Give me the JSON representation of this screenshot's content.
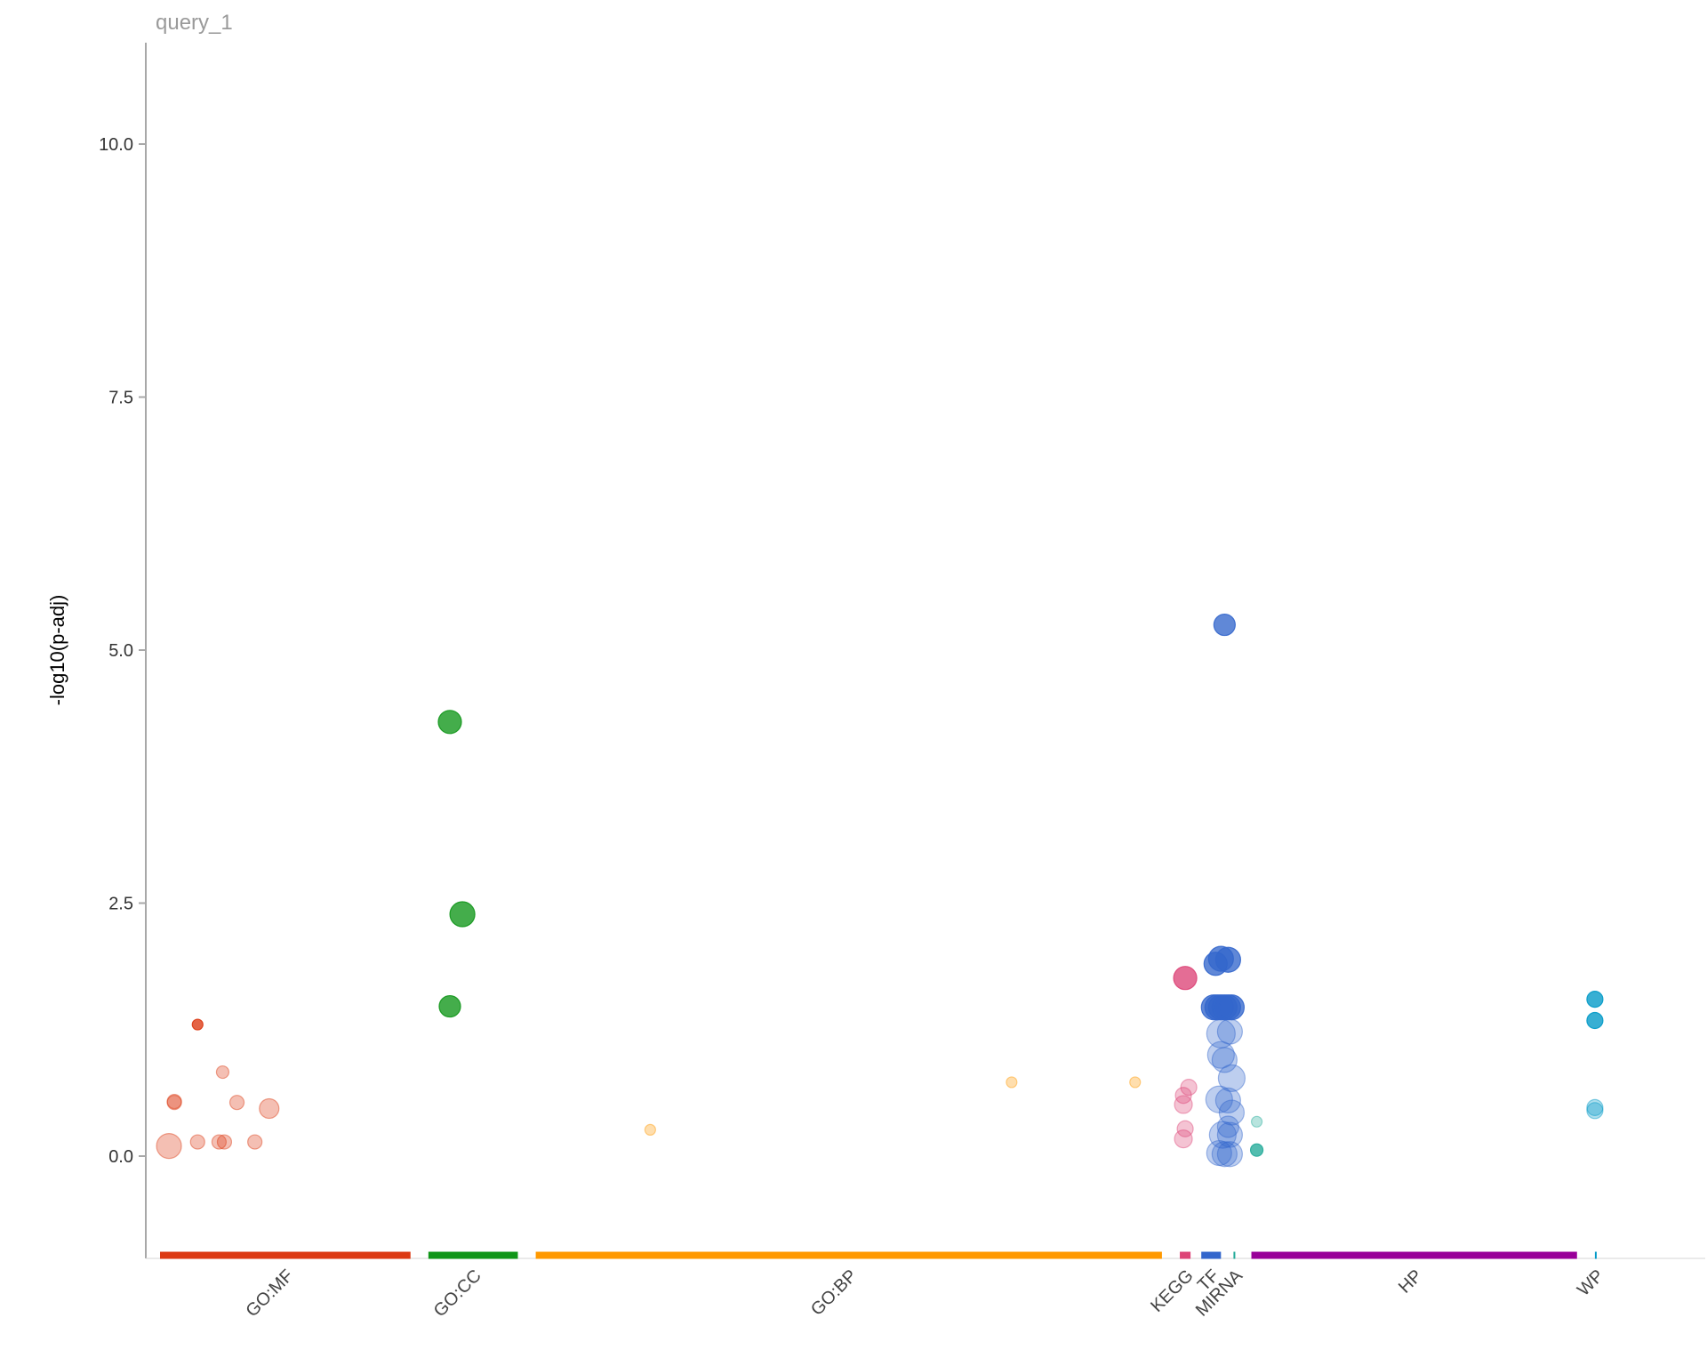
{
  "chart_data": {
    "type": "scatter",
    "title": "query_1",
    "ylabel": "-log10(p-adj)",
    "xlabel": "",
    "ylim": [
      -1,
      11.3
    ],
    "yticks": [
      "0.0",
      "2.5",
      "5.0",
      "7.5",
      "10.0"
    ],
    "ytick_values": [
      0,
      2.5,
      5,
      7.5,
      10
    ],
    "grid": false,
    "categories": [
      {
        "name": "GO:MF",
        "color": "#dc3912",
        "range": [
          0,
          14
        ]
      },
      {
        "name": "GO:CC",
        "color": "#109618",
        "range": [
          15,
          20
        ]
      },
      {
        "name": "GO:BP",
        "color": "#ff9900",
        "range": [
          21,
          56
        ]
      },
      {
        "name": "KEGG",
        "color": "#dd4477",
        "range": [
          57,
          57.6
        ]
      },
      {
        "name": "TF",
        "color": "#3366cc",
        "range": [
          58.2,
          59.3
        ]
      },
      {
        "name": "MIRNA",
        "color": "#22aa99",
        "range": [
          60,
          60.1
        ]
      },
      {
        "name": "HP",
        "color": "#990099",
        "range": [
          61,
          79.2
        ]
      },
      {
        "name": "WP",
        "color": "#0099c6",
        "range": [
          80.2,
          80.25
        ]
      }
    ],
    "series": [
      {
        "name": "GO:MF",
        "color": "#dc3912",
        "points": [
          {
            "x": 2.1,
            "y": 1.3,
            "size": 6,
            "sig": true
          },
          {
            "x": 0.8,
            "y": 0.54,
            "size": 8,
            "sig": false
          },
          {
            "x": 0.8,
            "y": 0.53,
            "size": 8,
            "sig": false
          },
          {
            "x": 3.5,
            "y": 0.83,
            "size": 7,
            "sig": false
          },
          {
            "x": 4.3,
            "y": 0.53,
            "size": 8,
            "sig": false
          },
          {
            "x": 6.1,
            "y": 0.47,
            "size": 11,
            "sig": false
          },
          {
            "x": 0.5,
            "y": 0.1,
            "size": 14,
            "sig": false
          },
          {
            "x": 2.1,
            "y": 0.14,
            "size": 8,
            "sig": false
          },
          {
            "x": 3.3,
            "y": 0.14,
            "size": 8,
            "sig": false
          },
          {
            "x": 3.6,
            "y": 0.14,
            "size": 8,
            "sig": false
          },
          {
            "x": 5.3,
            "y": 0.14,
            "size": 8,
            "sig": false
          }
        ]
      },
      {
        "name": "GO:CC",
        "color": "#109618",
        "points": [
          {
            "x": 16.2,
            "y": 4.29,
            "size": 13,
            "sig": true
          },
          {
            "x": 16.9,
            "y": 2.39,
            "size": 14,
            "sig": true
          },
          {
            "x": 16.2,
            "y": 1.48,
            "size": 12,
            "sig": true
          }
        ]
      },
      {
        "name": "GO:BP",
        "color": "#ff9900",
        "points": [
          {
            "x": 27.4,
            "y": 0.26,
            "size": 6,
            "sig": false
          },
          {
            "x": 47.6,
            "y": 0.73,
            "size": 6,
            "sig": false
          },
          {
            "x": 54.5,
            "y": 0.73,
            "size": 6,
            "sig": false
          }
        ]
      },
      {
        "name": "KEGG",
        "color": "#dd4477",
        "points": [
          {
            "x": 57.3,
            "y": 1.76,
            "size": 13,
            "sig": true
          },
          {
            "x": 57.2,
            "y": 0.6,
            "size": 9,
            "sig": false
          },
          {
            "x": 57.5,
            "y": 0.68,
            "size": 9,
            "sig": false
          },
          {
            "x": 57.2,
            "y": 0.51,
            "size": 10,
            "sig": false
          },
          {
            "x": 57.3,
            "y": 0.27,
            "size": 9,
            "sig": false
          },
          {
            "x": 57.2,
            "y": 0.17,
            "size": 10,
            "sig": false
          }
        ]
      },
      {
        "name": "TF",
        "color": "#3366cc",
        "points": [
          {
            "x": 59.5,
            "y": 5.25,
            "size": 12,
            "sig": true
          },
          {
            "x": 59.3,
            "y": 1.95,
            "size": 14,
            "sig": true
          },
          {
            "x": 59.7,
            "y": 1.94,
            "size": 14,
            "sig": true
          },
          {
            "x": 59.0,
            "y": 1.9,
            "size": 13,
            "sig": true
          },
          {
            "x": 58.9,
            "y": 1.47,
            "size": 14,
            "sig": true
          },
          {
            "x": 59.1,
            "y": 1.47,
            "size": 14,
            "sig": true
          },
          {
            "x": 59.3,
            "y": 1.47,
            "size": 14,
            "sig": true
          },
          {
            "x": 59.5,
            "y": 1.47,
            "size": 14,
            "sig": true
          },
          {
            "x": 59.7,
            "y": 1.47,
            "size": 14,
            "sig": true
          },
          {
            "x": 59.9,
            "y": 1.47,
            "size": 14,
            "sig": true
          },
          {
            "x": 59.3,
            "y": 1.21,
            "size": 16,
            "sig": false
          },
          {
            "x": 59.8,
            "y": 1.23,
            "size": 14,
            "sig": false
          },
          {
            "x": 59.3,
            "y": 1.0,
            "size": 15,
            "sig": false
          },
          {
            "x": 59.5,
            "y": 0.95,
            "size": 14,
            "sig": false
          },
          {
            "x": 59.9,
            "y": 0.77,
            "size": 15,
            "sig": false
          },
          {
            "x": 59.2,
            "y": 0.56,
            "size": 15,
            "sig": false
          },
          {
            "x": 59.7,
            "y": 0.55,
            "size": 14,
            "sig": false
          },
          {
            "x": 59.9,
            "y": 0.43,
            "size": 14,
            "sig": false
          },
          {
            "x": 59.7,
            "y": 0.29,
            "size": 12,
            "sig": false
          },
          {
            "x": 59.4,
            "y": 0.21,
            "size": 15,
            "sig": false
          },
          {
            "x": 59.8,
            "y": 0.21,
            "size": 14,
            "sig": false
          },
          {
            "x": 59.2,
            "y": 0.03,
            "size": 14,
            "sig": false
          },
          {
            "x": 59.5,
            "y": 0.02,
            "size": 14,
            "sig": false
          },
          {
            "x": 59.8,
            "y": 0.02,
            "size": 14,
            "sig": false
          }
        ]
      },
      {
        "name": "MIRNA",
        "color": "#22aa99",
        "points": [
          {
            "x": 61.3,
            "y": 0.34,
            "size": 6,
            "sig": false
          },
          {
            "x": 61.3,
            "y": 0.06,
            "size": 7,
            "sig": true
          }
        ]
      },
      {
        "name": "HP",
        "color": "#990099",
        "points": []
      },
      {
        "name": "WP",
        "color": "#0099c6",
        "points": [
          {
            "x": 80.2,
            "y": 1.55,
            "size": 9,
            "sig": true
          },
          {
            "x": 80.2,
            "y": 1.34,
            "size": 9,
            "sig": true
          },
          {
            "x": 80.2,
            "y": 0.48,
            "size": 9,
            "sig": false
          },
          {
            "x": 80.2,
            "y": 0.45,
            "size": 9,
            "sig": false
          }
        ]
      }
    ]
  }
}
